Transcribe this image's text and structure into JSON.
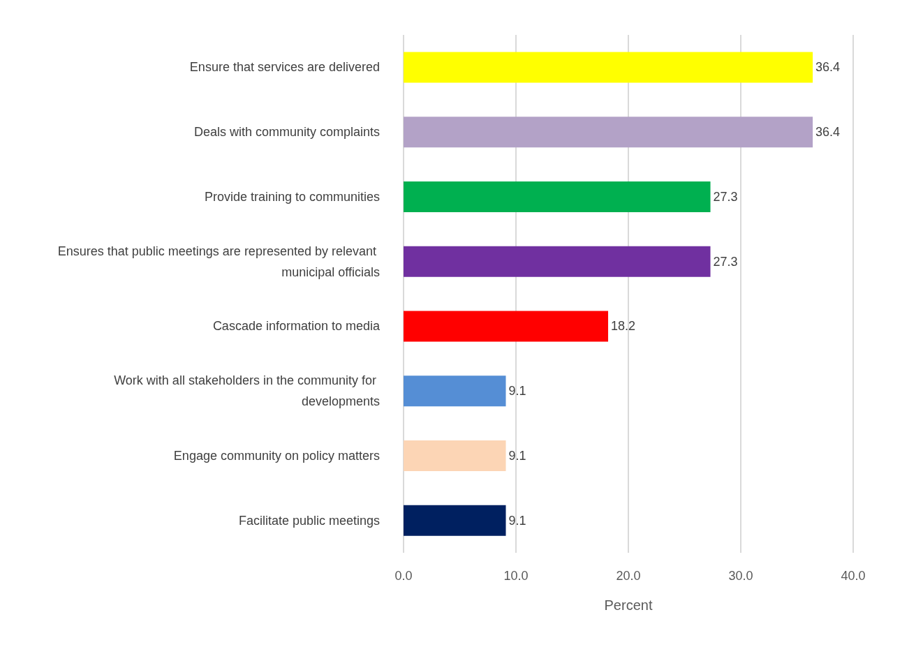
{
  "chart_data": {
    "type": "bar",
    "orientation": "horizontal",
    "xlabel": "Percent",
    "categories": [
      "Ensure that services are delivered",
      "Deals with community complaints",
      "Provide training to communities",
      "Ensures that public meetings are represented by relevant municipal officials",
      "Cascade information to media",
      "Work with all stakeholders in the community for developments",
      "Engage community on policy matters",
      "Facilitate public meetings"
    ],
    "values": [
      36.4,
      36.4,
      27.3,
      27.3,
      18.2,
      9.1,
      9.1,
      9.1
    ],
    "colors": [
      "#ffff00",
      "#b3a2c7",
      "#00b050",
      "#7030a0",
      "#ff0000",
      "#558ed5",
      "#fcd5b5",
      "#002060"
    ],
    "xlim": [
      0,
      40
    ],
    "xticks": [
      {
        "value": 0,
        "label": "0.0"
      },
      {
        "value": 10,
        "label": "10.0"
      },
      {
        "value": 20,
        "label": "20.0"
      },
      {
        "value": 30,
        "label": "30.0"
      },
      {
        "value": 40,
        "label": "40.0"
      }
    ],
    "data_labels": true,
    "grid": "x"
  }
}
